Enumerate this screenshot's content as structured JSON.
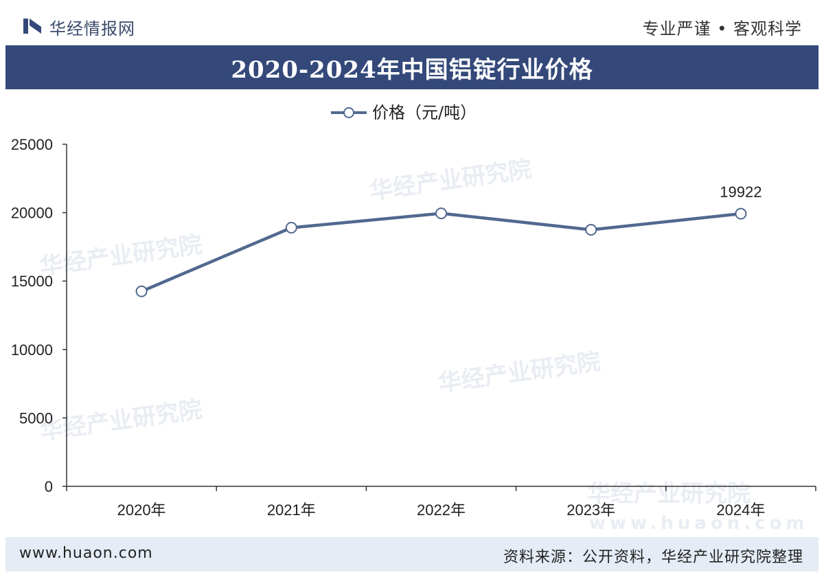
{
  "header": {
    "logo_text": "华经情报网",
    "slogan": "专业严谨 • 客观科学"
  },
  "title": "2020-2024年中国铝锭行业价格",
  "footer": {
    "url": "www.huaon.com",
    "source": "资料来源：公开资料，华经产业研究院整理"
  },
  "watermark": {
    "text": "华经产业研究院",
    "url": "www.huaon.com"
  },
  "colors": {
    "brand": "#34497a",
    "line": "#51698f",
    "footer_bg": "#e6ecf6"
  },
  "chart_data": {
    "type": "line",
    "categories": [
      "2020年",
      "2021年",
      "2022年",
      "2023年",
      "2024年"
    ],
    "series": [
      {
        "name": "价格（元/吨）",
        "values": [
          14250,
          18900,
          19950,
          18750,
          19922
        ]
      }
    ],
    "ylim": [
      0,
      25000
    ],
    "yticks": [
      0,
      5000,
      10000,
      15000,
      20000,
      25000
    ],
    "data_labels": [
      {
        "index": 4,
        "text": "19922"
      }
    ],
    "legend_position": "top-center",
    "grid": false
  }
}
